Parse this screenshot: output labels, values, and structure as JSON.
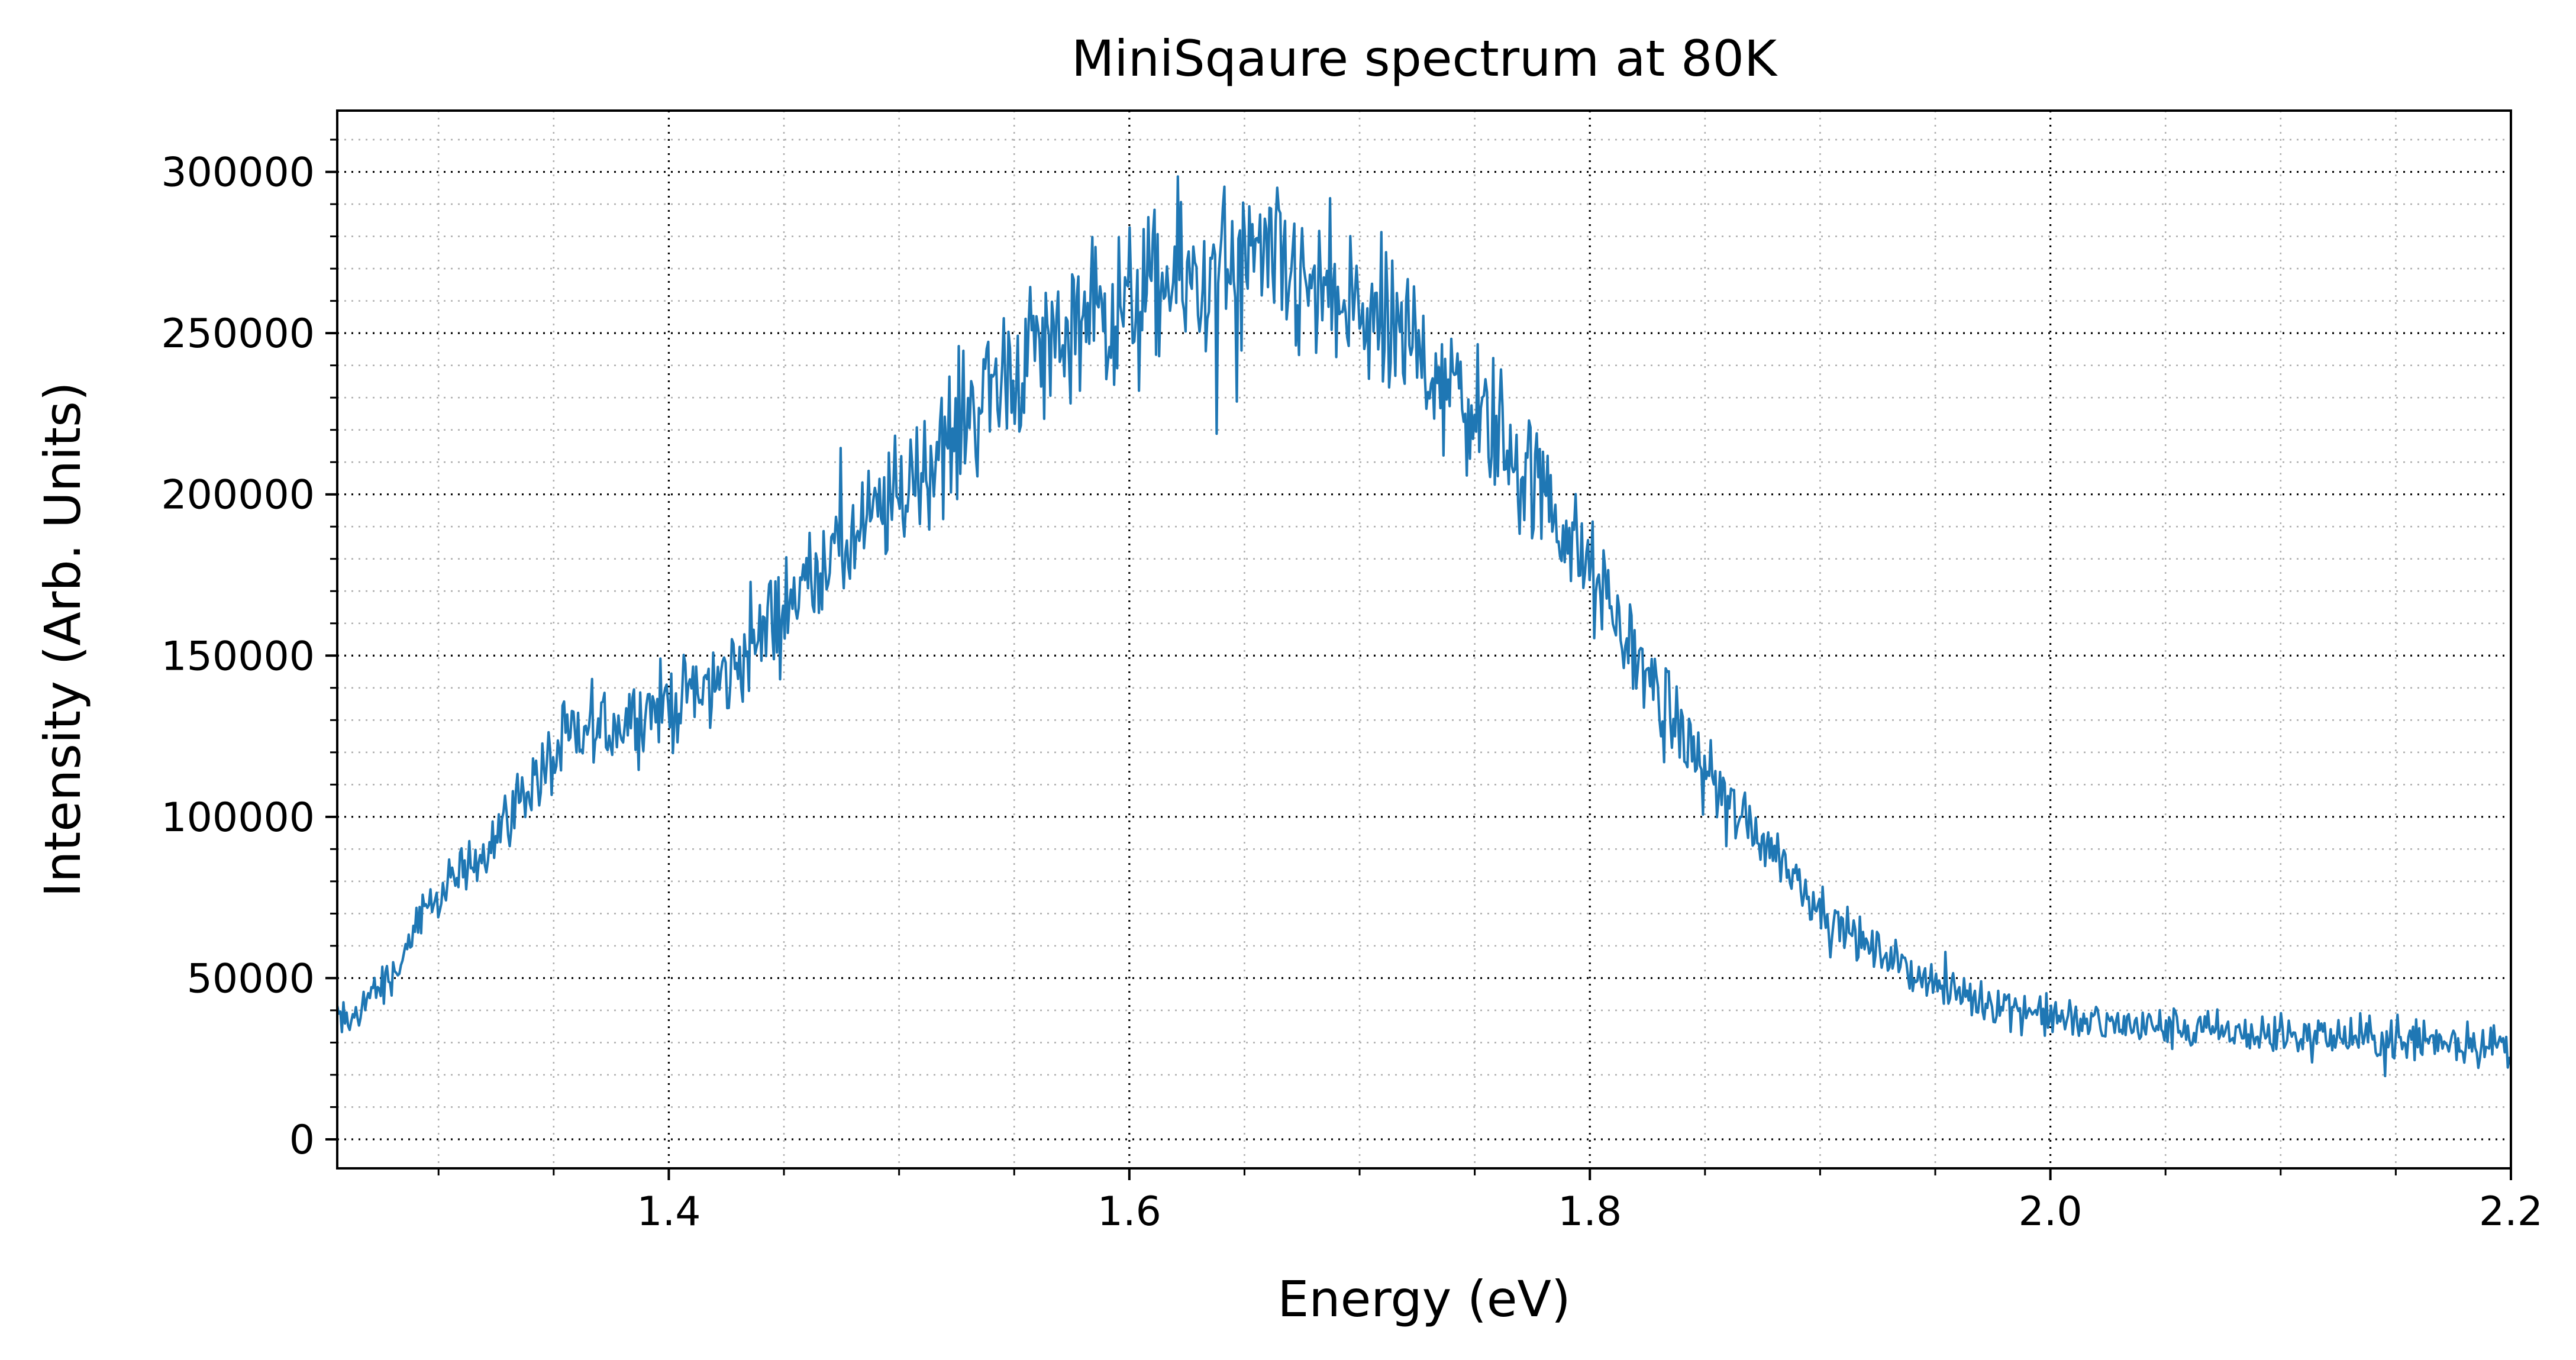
{
  "chart_data": {
    "type": "line",
    "title": "MiniSqaure spectrum at 80K",
    "xlabel": "Energy (eV)",
    "ylabel": "Intensity (Arb. Units)",
    "xlim": [
      1.256,
      2.2
    ],
    "ylim": [
      -9000,
      319000
    ],
    "x_major_ticks": [
      1.4,
      1.6,
      1.8,
      2.0,
      2.2
    ],
    "x_tick_labels": [
      "1.4",
      "1.6",
      "1.8",
      "2.0",
      "2.2"
    ],
    "x_minor_step": 0.05,
    "y_major_ticks": [
      0,
      50000,
      100000,
      150000,
      200000,
      250000,
      300000
    ],
    "y_tick_labels": [
      "0",
      "50000",
      "100000",
      "150000",
      "200000",
      "250000",
      "300000"
    ],
    "y_minor_step": 10000,
    "grid": "on (major and minor, dotted)",
    "line_color": "#1f77b4",
    "series": [
      {
        "x": [
          1.256,
          1.26,
          1.27,
          1.28,
          1.29,
          1.3,
          1.32,
          1.34,
          1.36,
          1.38,
          1.4,
          1.42,
          1.44,
          1.46,
          1.48,
          1.5,
          1.52,
          1.54,
          1.56,
          1.58,
          1.6,
          1.62,
          1.64,
          1.66,
          1.68,
          1.7,
          1.72,
          1.74,
          1.76,
          1.78,
          1.8,
          1.82,
          1.84,
          1.86,
          1.88,
          1.9,
          1.92,
          1.94,
          1.96,
          1.98,
          2.0,
          2.02,
          2.04,
          2.06,
          2.08,
          2.1,
          2.12,
          2.14,
          2.16,
          2.18,
          2.2
        ],
        "y": [
          38000,
          35000,
          45000,
          50000,
          65000,
          75000,
          90000,
          110000,
          125000,
          130000,
          135000,
          140000,
          155000,
          175000,
          185000,
          200000,
          215000,
          235000,
          245000,
          252000,
          258000,
          265000,
          268000,
          270000,
          262000,
          255000,
          248000,
          235000,
          220000,
          200000,
          175000,
          150000,
          125000,
          105000,
          90000,
          72000,
          60000,
          52000,
          45000,
          42000,
          38000,
          36000,
          35000,
          34000,
          33000,
          32000,
          32000,
          31000,
          31000,
          30000,
          29000
        ]
      }
    ]
  }
}
